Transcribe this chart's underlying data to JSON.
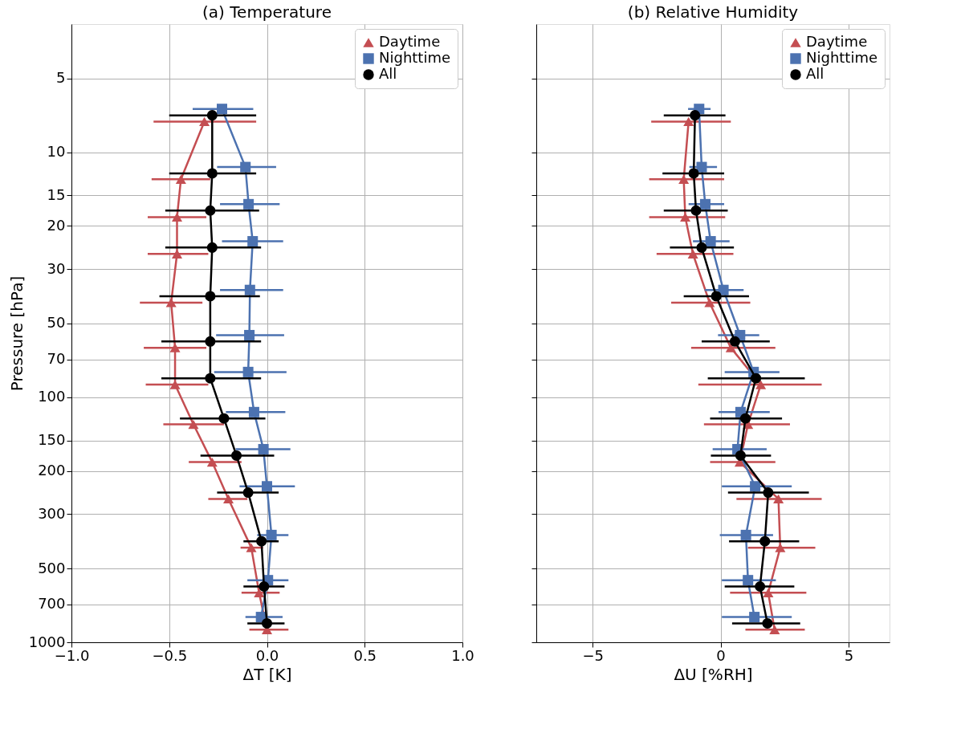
{
  "chart_data": [
    {
      "type": "line",
      "orientation": "horizontal",
      "title": "(a) Temperature",
      "xlabel": "ΔT [K]",
      "ylabel": "Pressure [hPa]",
      "xlim": [
        -1.0,
        1.0
      ],
      "xticks": [
        {
          "value": -1.0,
          "label": "−1.0"
        },
        {
          "value": -0.5,
          "label": "−0.5"
        },
        {
          "value": 0,
          "label": "0.0"
        },
        {
          "value": 0.5,
          "label": "0.5"
        },
        {
          "value": 1.0,
          "label": "1.0"
        }
      ],
      "ylim": [
        1000,
        3
      ],
      "yticks": [
        5,
        10,
        15,
        20,
        30,
        50,
        70,
        100,
        150,
        200,
        300,
        500,
        700,
        1000
      ],
      "log": "y",
      "grid": true,
      "legend": "top right",
      "series": [
        {
          "name": "Daytime",
          "color": "#c44e52",
          "marker": "triangle",
          "x": [
            7.5,
            12.9,
            18.4,
            26.0,
            41.1,
            62.8,
            88.8,
            129,
            184,
            260,
            411,
            628,
            888
          ],
          "values": [
            -0.32,
            -0.44,
            -0.46,
            -0.46,
            -0.49,
            -0.47,
            -0.47,
            -0.376,
            -0.28,
            -0.197,
            -0.08,
            -0.04,
            0.0
          ],
          "errors": [
            [
              -0.58,
              -0.055
            ],
            [
              -0.59,
              -0.29
            ],
            [
              -0.61,
              -0.31
            ],
            [
              -0.61,
              -0.3
            ],
            [
              -0.65,
              -0.33
            ],
            [
              -0.63,
              -0.31
            ],
            [
              -0.62,
              -0.3
            ],
            [
              -0.53,
              -0.22
            ],
            [
              -0.4,
              -0.13
            ],
            [
              -0.3,
              -0.1
            ],
            [
              -0.135,
              -0.02
            ],
            [
              -0.13,
              0.065
            ],
            [
              -0.09,
              0.11
            ]
          ]
        },
        {
          "name": "Nighttime",
          "color": "#4c72b0",
          "marker": "square",
          "x": [
            6.66,
            11.5,
            16.3,
            23.1,
            36.5,
            55.8,
            78.9,
            115,
            163,
            231,
            365,
            558,
            789
          ],
          "values": [
            -0.23,
            -0.11,
            -0.094,
            -0.073,
            -0.087,
            -0.09,
            -0.096,
            -0.066,
            -0.018,
            0.0,
            0.023,
            0.005,
            -0.03
          ],
          "errors": [
            [
              -0.38,
              -0.07
            ],
            [
              -0.255,
              0.047
            ],
            [
              -0.24,
              0.065
            ],
            [
              -0.23,
              0.083
            ],
            [
              -0.24,
              0.083
            ],
            [
              -0.26,
              0.088
            ],
            [
              -0.27,
              0.1
            ],
            [
              -0.21,
              0.094
            ],
            [
              -0.16,
              0.12
            ],
            [
              -0.14,
              0.143
            ],
            [
              -0.05,
              0.11
            ],
            [
              -0.1,
              0.11
            ],
            [
              -0.11,
              0.08
            ]
          ]
        },
        {
          "name": "All",
          "color": "#000000",
          "marker": "circle",
          "x": [
            7.07,
            12.2,
            17.3,
            24.5,
            38.7,
            59.2,
            83.7,
            122,
            173,
            245,
            387,
            592,
            837
          ],
          "values": [
            -0.28,
            -0.28,
            -0.29,
            -0.28,
            -0.29,
            -0.29,
            -0.29,
            -0.22,
            -0.156,
            -0.096,
            -0.028,
            -0.015,
            0.0
          ],
          "errors": [
            [
              -0.5,
              -0.055
            ],
            [
              -0.5,
              -0.055
            ],
            [
              -0.52,
              -0.04
            ],
            [
              -0.52,
              -0.03
            ],
            [
              -0.55,
              -0.036
            ],
            [
              -0.54,
              -0.03
            ],
            [
              -0.54,
              -0.03
            ],
            [
              -0.445,
              -0.008
            ],
            [
              -0.34,
              0.037
            ],
            [
              -0.255,
              0.06
            ],
            [
              -0.12,
              0.06
            ],
            [
              -0.12,
              0.09
            ],
            [
              -0.1,
              0.09
            ]
          ]
        }
      ]
    },
    {
      "type": "line",
      "orientation": "horizontal",
      "title": "(b) Relative Humidity",
      "xlabel": "ΔU [%RH]",
      "xlim": [
        -7.2,
        6.6
      ],
      "xticks": [
        {
          "value": -5,
          "label": "−5"
        },
        0,
        5
      ],
      "ylim": [
        1000,
        3
      ],
      "yticks": [
        5,
        10,
        15,
        20,
        30,
        50,
        70,
        100,
        150,
        200,
        300,
        500,
        700,
        1000
      ],
      "log": "y",
      "grid": true,
      "legend": "top right",
      "tick_labels": "x",
      "series": [
        {
          "name": "Daytime",
          "color": "#c44e52",
          "marker": "triangle",
          "x": [
            7.5,
            12.9,
            18.4,
            26.0,
            41.1,
            62.8,
            88.8,
            129,
            184,
            260,
            411,
            628,
            888
          ],
          "values": [
            -1.25,
            -1.44,
            -1.38,
            -1.08,
            -0.43,
            0.4,
            1.57,
            1.07,
            0.75,
            2.26,
            2.33,
            1.86,
            2.11
          ],
          "errors": [
            [
              -2.71,
              0.4
            ],
            [
              -2.79,
              0.14
            ],
            [
              -2.79,
              0.18
            ],
            [
              -2.5,
              0.5
            ],
            [
              -1.93,
              1.16
            ],
            [
              -1.15,
              2.14
            ],
            [
              -0.87,
              3.95
            ],
            [
              -0.65,
              2.71
            ],
            [
              -0.41,
              2.14
            ],
            [
              0.62,
              3.95
            ],
            [
              1.07,
              3.7
            ],
            [
              0.37,
              3.35
            ],
            [
              0.97,
              3.29
            ]
          ]
        },
        {
          "name": "Nighttime",
          "color": "#4c72b0",
          "marker": "square",
          "x": [
            6.66,
            11.5,
            16.3,
            23.1,
            36.5,
            55.8,
            78.9,
            115,
            163,
            231,
            365,
            558,
            789
          ],
          "values": [
            -0.84,
            -0.74,
            -0.6,
            -0.39,
            0.11,
            0.76,
            1.29,
            0.78,
            0.66,
            1.35,
            0.99,
            1.07,
            1.32
          ],
          "errors": [
            [
              -1.27,
              -0.39
            ],
            [
              -1.22,
              -0.14
            ],
            [
              -1.25,
              0.14
            ],
            [
              -1.08,
              0.35
            ],
            [
              -0.62,
              0.9
            ],
            [
              -0.1,
              1.51
            ],
            [
              0.16,
              2.3
            ],
            [
              -0.08,
              1.92
            ],
            [
              -0.31,
              1.8
            ],
            [
              0.05,
              2.78
            ],
            [
              -0.03,
              2.05
            ],
            [
              0.05,
              2.16
            ],
            [
              0.05,
              2.78
            ]
          ]
        },
        {
          "name": "All",
          "color": "#000000",
          "marker": "circle",
          "x": [
            7.07,
            12.2,
            17.3,
            24.5,
            38.7,
            59.2,
            83.7,
            122,
            173,
            245,
            387,
            592,
            837
          ],
          "values": [
            -1.0,
            -1.05,
            -0.96,
            -0.74,
            -0.17,
            0.56,
            1.38,
            0.97,
            0.78,
            1.86,
            1.73,
            1.54,
            1.83
          ],
          "errors": [
            [
              -2.22,
              0.19
            ],
            [
              -2.27,
              0.14
            ],
            [
              -2.22,
              0.28
            ],
            [
              -1.98,
              0.52
            ],
            [
              -1.44,
              1.11
            ],
            [
              -0.74,
              1.92
            ],
            [
              -0.5,
              3.29
            ],
            [
              -0.41,
              2.4
            ],
            [
              -0.38,
              1.97
            ],
            [
              0.29,
              3.45
            ],
            [
              0.33,
              3.07
            ],
            [
              0.16,
              2.88
            ],
            [
              0.45,
              3.11
            ]
          ]
        }
      ]
    }
  ]
}
